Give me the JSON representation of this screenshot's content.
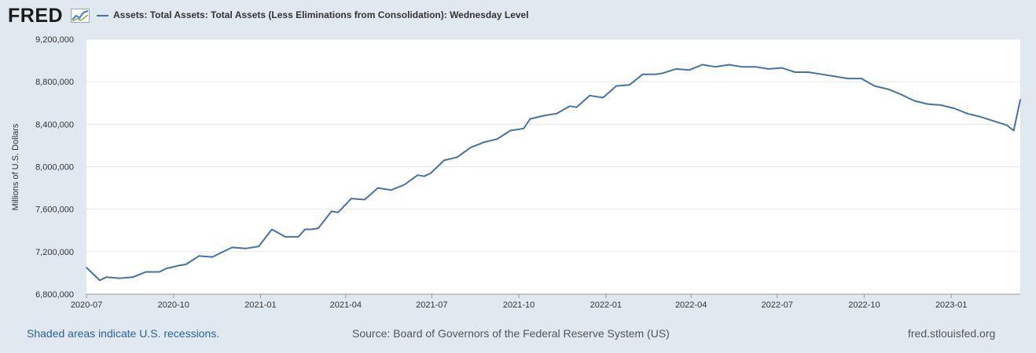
{
  "header": {
    "logo_text": "FRED",
    "logo_icon": "line-chart-icon",
    "legend_label": "Assets: Total Assets: Total Assets (Less Eliminations from Consolidation): Wednesday Level"
  },
  "footer": {
    "recession_note": "Shaded areas indicate U.S. recessions.",
    "source": "Source: Board of Governors of the Federal Reserve System (US)",
    "site": "fred.stlouisfed.org"
  },
  "colors": {
    "series": "#4572a7",
    "background": "#e1e9f0",
    "plot_background": "#ffffff",
    "grid": "#e6e6e6"
  },
  "chart_data": {
    "type": "line",
    "title": "",
    "xlabel": "",
    "ylabel": "Millions of U.S. Dollars",
    "ylim": [
      6800000,
      9200000
    ],
    "yticks": [
      "9,200,000",
      "8,800,000",
      "8,400,000",
      "8,000,000",
      "7,600,000",
      "7,200,000",
      "6,800,000"
    ],
    "ytick_values": [
      9200000,
      8800000,
      8400000,
      8000000,
      7600000,
      7200000,
      6800000
    ],
    "xlim": [
      "2020-07-01",
      "2023-03-15"
    ],
    "xticks": [
      {
        "label": "2020-07",
        "date": "2020-07-01"
      },
      {
        "label": "2020-10",
        "date": "2020-10-01"
      },
      {
        "label": "2021-01",
        "date": "2021-01-01"
      },
      {
        "label": "2021-04",
        "date": "2021-04-01"
      },
      {
        "label": "2021-07",
        "date": "2021-07-01"
      },
      {
        "label": "2021-10",
        "date": "2021-10-01"
      },
      {
        "label": "2022-01",
        "date": "2022-01-01"
      },
      {
        "label": "2022-04",
        "date": "2022-04-01"
      },
      {
        "label": "2022-07",
        "date": "2022-07-01"
      },
      {
        "label": "2022-10",
        "date": "2022-10-01"
      },
      {
        "label": "2023-01",
        "date": "2023-01-01"
      }
    ],
    "grid": true,
    "legend_position": "top",
    "series": [
      {
        "name": "Assets: Total Assets: Total Assets (Less Eliminations from Consolidation): Wednesday Level",
        "x": [
          "2020-07-01",
          "2020-07-15",
          "2020-07-22",
          "2020-08-05",
          "2020-08-19",
          "2020-09-02",
          "2020-09-16",
          "2020-09-23",
          "2020-10-07",
          "2020-10-14",
          "2020-10-28",
          "2020-11-11",
          "2020-11-18",
          "2020-12-02",
          "2020-12-16",
          "2020-12-30",
          "2021-01-13",
          "2021-01-27",
          "2021-02-10",
          "2021-02-17",
          "2021-02-24",
          "2021-03-03",
          "2021-03-17",
          "2021-03-24",
          "2021-04-07",
          "2021-04-21",
          "2021-05-05",
          "2021-05-19",
          "2021-06-02",
          "2021-06-16",
          "2021-06-23",
          "2021-06-30",
          "2021-07-14",
          "2021-07-28",
          "2021-08-11",
          "2021-08-25",
          "2021-09-08",
          "2021-09-22",
          "2021-10-06",
          "2021-10-13",
          "2021-10-27",
          "2021-11-10",
          "2021-11-24",
          "2021-12-01",
          "2021-12-15",
          "2021-12-29",
          "2022-01-12",
          "2022-01-26",
          "2022-02-09",
          "2022-02-23",
          "2022-03-02",
          "2022-03-16",
          "2022-03-30",
          "2022-04-13",
          "2022-04-27",
          "2022-05-11",
          "2022-05-25",
          "2022-06-08",
          "2022-06-22",
          "2022-07-06",
          "2022-07-20",
          "2022-08-03",
          "2022-08-17",
          "2022-08-31",
          "2022-09-14",
          "2022-09-28",
          "2022-10-12",
          "2022-10-26",
          "2022-11-09",
          "2022-11-23",
          "2022-12-07",
          "2022-12-21",
          "2023-01-04",
          "2023-01-18",
          "2023-02-01",
          "2023-02-15",
          "2023-03-01",
          "2023-03-08",
          "2023-03-15"
        ],
        "values": [
          7050000,
          6930000,
          6960000,
          6950000,
          6960000,
          7010000,
          7010000,
          7040000,
          7070000,
          7080000,
          7160000,
          7150000,
          7180000,
          7240000,
          7230000,
          7250000,
          7410000,
          7340000,
          7340000,
          7410000,
          7410000,
          7420000,
          7580000,
          7570000,
          7700000,
          7690000,
          7800000,
          7780000,
          7830000,
          7920000,
          7910000,
          7940000,
          8060000,
          8090000,
          8180000,
          8230000,
          8260000,
          8340000,
          8360000,
          8450000,
          8480000,
          8500000,
          8570000,
          8560000,
          8670000,
          8650000,
          8760000,
          8770000,
          8870000,
          8870000,
          8880000,
          8920000,
          8910000,
          8960000,
          8940000,
          8960000,
          8940000,
          8940000,
          8920000,
          8930000,
          8890000,
          8890000,
          8870000,
          8850000,
          8830000,
          8830000,
          8760000,
          8730000,
          8680000,
          8620000,
          8590000,
          8580000,
          8550000,
          8500000,
          8470000,
          8430000,
          8390000,
          8340000,
          8630000
        ]
      }
    ]
  }
}
